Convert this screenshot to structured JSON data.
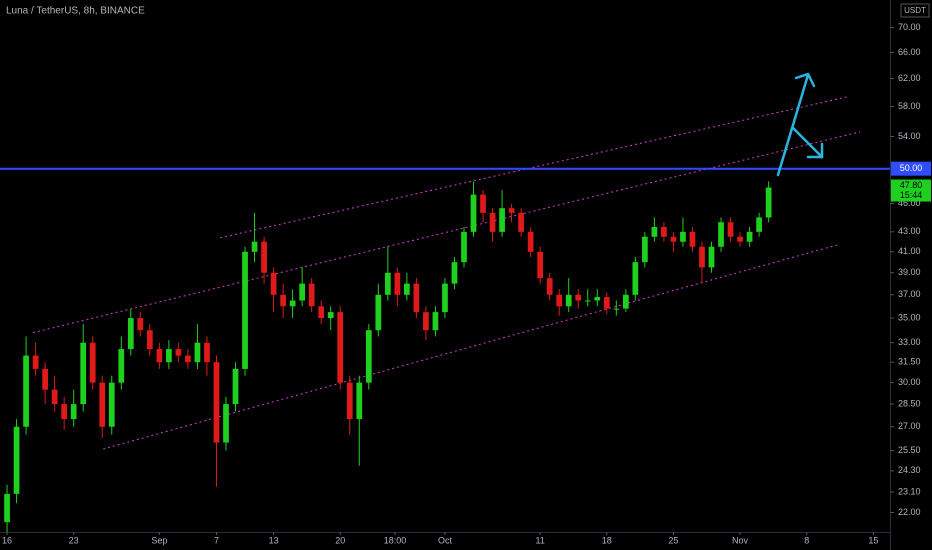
{
  "chart_data": {
    "type": "candlestick",
    "title": "Luna / TetherUS, 8h, BINANCE",
    "currency": "USDT",
    "log_scale": true,
    "grid": false,
    "up_color": "#1fd11f",
    "down_color": "#e01a1a",
    "x": [
      0,
      1,
      2,
      3,
      4,
      5,
      6,
      7,
      8,
      9,
      10,
      11,
      12,
      13,
      14,
      15,
      16,
      17,
      18,
      19,
      20,
      21,
      22,
      23,
      24,
      25,
      26,
      27,
      28,
      29,
      30,
      31,
      32,
      33,
      34,
      35,
      36,
      37,
      38,
      39,
      40,
      41,
      42,
      43,
      44,
      45,
      46,
      47,
      48,
      49,
      50,
      51,
      52,
      53,
      54,
      55,
      56,
      57,
      58,
      59,
      60,
      61,
      62,
      63,
      64,
      65,
      66,
      67,
      68,
      69,
      70,
      71,
      72,
      73,
      74,
      75,
      76,
      77,
      78,
      79,
      80
    ],
    "open": [
      21.5,
      23,
      27,
      32,
      31,
      29.5,
      28.5,
      27.5,
      28.5,
      33,
      30,
      27,
      30,
      32.5,
      35,
      34,
      32.5,
      31.5,
      32.5,
      32,
      31.5,
      33,
      31.5,
      26,
      28.5,
      31,
      41,
      42,
      39,
      37,
      36,
      36.5,
      38,
      36,
      35,
      35.5,
      30,
      27.5,
      30,
      34,
      37,
      39,
      37,
      38,
      35.5,
      34,
      35.5,
      38,
      40,
      43,
      47,
      45,
      43,
      45.5,
      45,
      43,
      41,
      38.5,
      37,
      36,
      37,
      36.5,
      36.5,
      36.8,
      35.8,
      35.8,
      37,
      40,
      42.5,
      43.5,
      42.5,
      42,
      43,
      41.5,
      39.5,
      41.5,
      44,
      42.5,
      42,
      43,
      44.5
    ],
    "high": [
      23.5,
      27.5,
      33.5,
      33,
      31.5,
      30.5,
      29,
      29.5,
      34.5,
      33.5,
      30.5,
      30.5,
      33.5,
      35.8,
      35.5,
      34.5,
      33,
      33.2,
      33,
      32.5,
      34.5,
      33.5,
      32,
      29,
      31.5,
      41.5,
      45,
      42.5,
      39.5,
      38,
      37.5,
      39.5,
      38.5,
      36.5,
      36,
      36,
      30.5,
      30.5,
      34.5,
      38,
      41.5,
      39.5,
      39,
      38.5,
      36,
      36,
      38.5,
      40.5,
      43.5,
      48.5,
      47.5,
      45.5,
      47.5,
      46,
      45.5,
      43.5,
      41.5,
      39,
      37.5,
      38.5,
      37.5,
      37.5,
      37.5,
      37.2,
      36.5,
      37.5,
      40.5,
      43,
      44.5,
      44,
      43,
      44.5,
      43.5,
      42,
      42,
      44.5,
      44.5,
      43,
      43.5,
      45,
      48.5
    ],
    "low": [
      21,
      22.5,
      26.5,
      30.5,
      28.5,
      28,
      26.8,
      27,
      28,
      29.5,
      26.3,
      26.5,
      29.5,
      32,
      33.5,
      32,
      31,
      31,
      31.5,
      31,
      31,
      30.5,
      23.4,
      25.5,
      28,
      30.5,
      40,
      38,
      35.5,
      35,
      35,
      36,
      35.5,
      34.5,
      34,
      29.5,
      26.5,
      24.6,
      29.5,
      33.5,
      36.5,
      36,
      36.5,
      35,
      33.2,
      33.5,
      35,
      37.5,
      39.5,
      42.5,
      44,
      42,
      42.5,
      44,
      42.5,
      40.5,
      38,
      36.5,
      35.2,
      35.5,
      35.8,
      36,
      36,
      35.3,
      35.2,
      35.5,
      36.5,
      39.5,
      42,
      42,
      41,
      41.5,
      41,
      38,
      39,
      41,
      42,
      41.5,
      41.5,
      42.5,
      44
    ],
    "close": [
      23,
      27,
      32,
      31,
      29.5,
      28.5,
      27.5,
      28.5,
      33,
      30,
      27,
      30,
      32.5,
      35,
      34,
      32.5,
      31.5,
      32.5,
      32,
      31.5,
      33,
      31.5,
      26,
      28.5,
      31,
      41,
      42,
      39,
      37,
      36,
      36.5,
      38,
      36,
      35,
      35.5,
      30,
      27.5,
      30,
      34,
      37,
      39,
      37,
      38,
      35.5,
      34,
      35.5,
      38,
      40,
      43,
      47,
      45,
      43,
      45.5,
      45,
      43,
      41,
      38.5,
      37,
      36,
      37,
      36.5,
      36.5,
      36.8,
      35.8,
      35.8,
      37,
      40,
      42.5,
      43.5,
      42.5,
      42,
      43,
      41.5,
      39.5,
      41.5,
      44,
      42.5,
      42,
      43,
      44.5,
      47.8
    ],
    "xlim": [
      -0.74,
      92.75
    ],
    "xticks": [
      {
        "value": 0,
        "label": "16"
      },
      {
        "value": 7,
        "label": "23"
      },
      {
        "value": 16,
        "label": "Sep"
      },
      {
        "value": 22,
        "label": "7"
      },
      {
        "value": 28,
        "label": "13"
      },
      {
        "value": 35,
        "label": "20"
      },
      {
        "value": 40.75,
        "label": "18:00"
      },
      {
        "value": 46,
        "label": "Oct"
      },
      {
        "value": 56,
        "label": "11"
      },
      {
        "value": 63,
        "label": "18"
      },
      {
        "value": 70,
        "label": "25"
      },
      {
        "value": 77,
        "label": "Nov"
      },
      {
        "value": 84,
        "label": "8"
      },
      {
        "value": 91,
        "label": "15"
      }
    ],
    "ylim": [
      21.0,
      74.8
    ],
    "yticks": [
      {
        "value": 22,
        "label": "22.00"
      },
      {
        "value": 23.1,
        "label": "23.10"
      },
      {
        "value": 24.3,
        "label": "24.30"
      },
      {
        "value": 25.5,
        "label": "25.50"
      },
      {
        "value": 27,
        "label": "27.00"
      },
      {
        "value": 28.5,
        "label": "28.50"
      },
      {
        "value": 30,
        "label": "30.00"
      },
      {
        "value": 31.5,
        "label": "31.50"
      },
      {
        "value": 33,
        "label": "33.00"
      },
      {
        "value": 35,
        "label": "35.00"
      },
      {
        "value": 37,
        "label": "37.00"
      },
      {
        "value": 39,
        "label": "39.00"
      },
      {
        "value": 41,
        "label": "41.00"
      },
      {
        "value": 43,
        "label": "43.00"
      },
      {
        "value": 46,
        "label": "46.00"
      },
      {
        "value": 54,
        "label": "54.00"
      },
      {
        "value": 58,
        "label": "58.00"
      },
      {
        "value": 62,
        "label": "62.00"
      },
      {
        "value": 66,
        "label": "66.00"
      },
      {
        "value": 70,
        "label": "70.00"
      }
    ],
    "hline": {
      "value": 50,
      "label": "50.00",
      "color": "#2f4cff"
    },
    "last_price": {
      "value": 47.8,
      "label": "47.80",
      "countdown": "15:44",
      "color": "#1fd11f"
    },
    "channel_lines": [
      {
        "x": [
          22.4,
          88.4
        ],
        "y": [
          42.4,
          59.4
        ],
        "color": "#d63ad6"
      },
      {
        "x": [
          2.73,
          89.6
        ],
        "y": [
          33.8,
          54.6
        ],
        "color": "#d63ad6"
      },
      {
        "x": [
          10.1,
          87.3
        ],
        "y": [
          25.6,
          41.7
        ],
        "color": "#d63ad6"
      }
    ]
  }
}
